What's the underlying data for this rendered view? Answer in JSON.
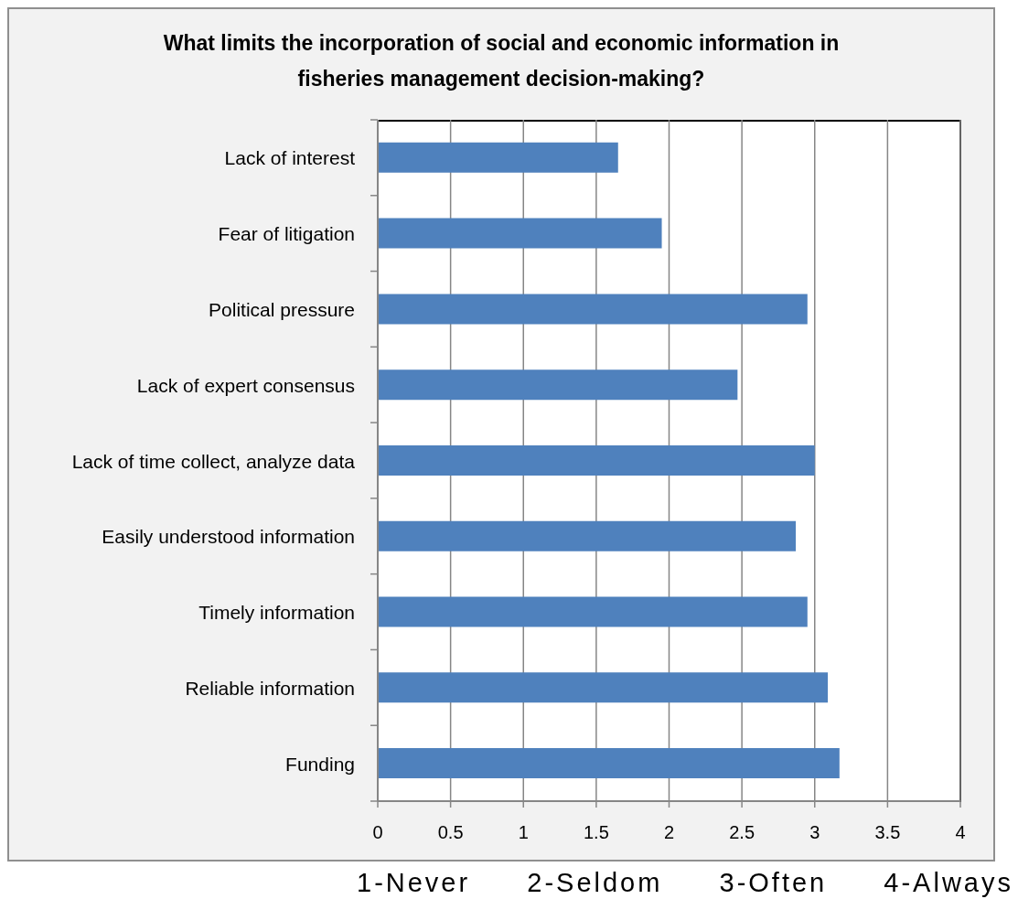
{
  "chart_data": {
    "type": "bar",
    "orientation": "horizontal",
    "title": "What limits the incorporation of social and economic information in fisheries management decision-making?",
    "categories": [
      "Lack of interest",
      "Fear of litigation",
      "Political pressure",
      "Lack of expert consensus",
      "Lack of time collect, analyze data",
      "Easily understood information",
      "Timely information",
      "Reliable information",
      "Funding"
    ],
    "values": [
      1.65,
      1.95,
      2.95,
      2.47,
      3.0,
      2.87,
      2.95,
      3.09,
      3.17
    ],
    "color": "#4f81bd",
    "xlim": [
      0,
      4
    ],
    "xticks": [
      0,
      0.5,
      1,
      1.5,
      2,
      2.5,
      3,
      3.5,
      4
    ],
    "grid": "x",
    "annotations": [
      "1-Never",
      "2-Seldom",
      "3-Often",
      "4-Always"
    ]
  }
}
